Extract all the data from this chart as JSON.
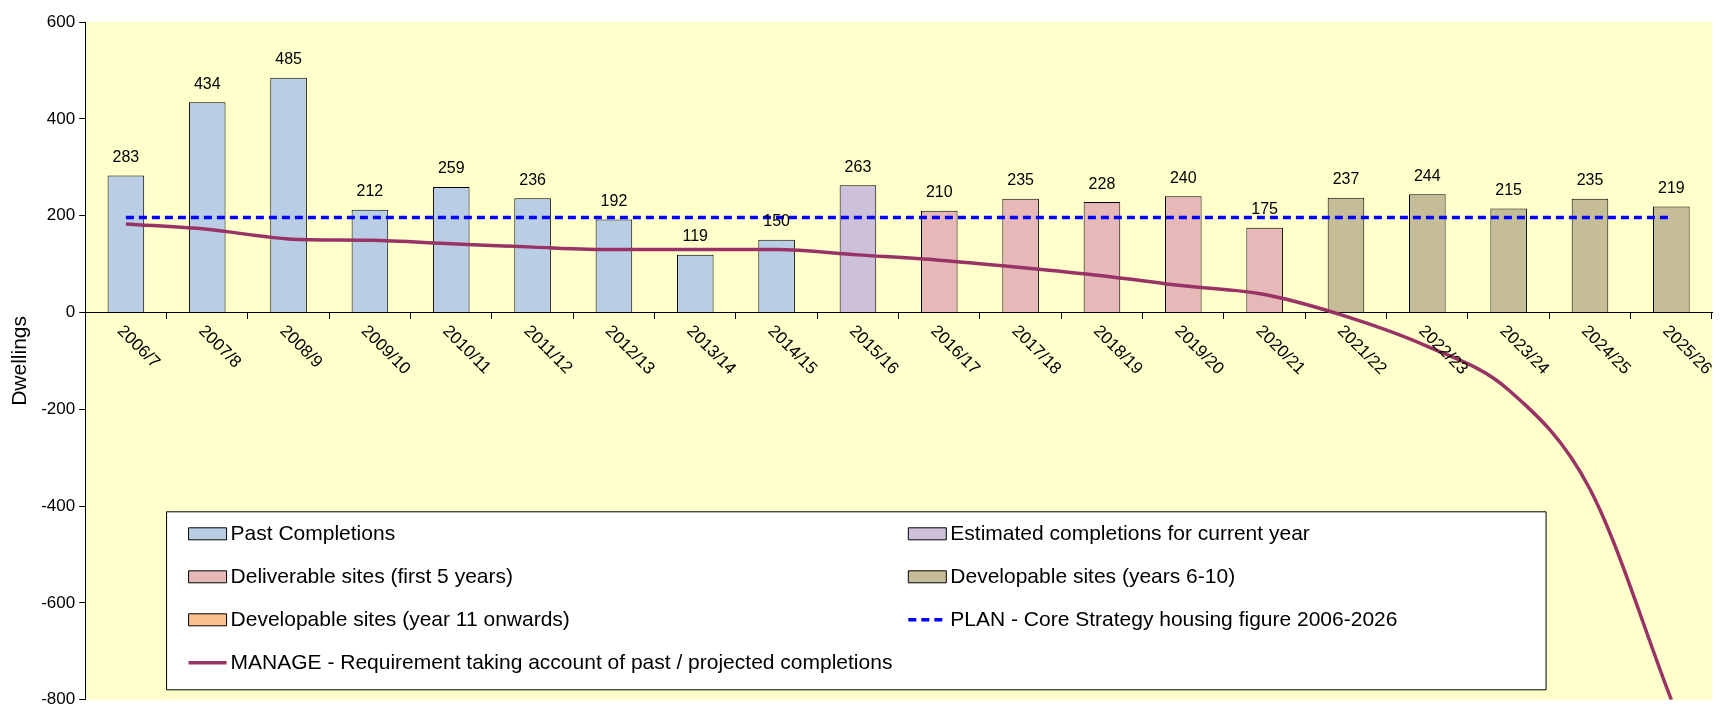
{
  "chart_data": {
    "type": "bar",
    "stacked": true,
    "ylabel": "Dwellings",
    "categories": [
      "2006/7",
      "2007/8",
      "2008/9",
      "2009/10",
      "2010/11",
      "2011/12",
      "2012/13",
      "2013/14",
      "2014/15",
      "2015/16",
      "2016/17",
      "2017/18",
      "2018/19",
      "2019/20",
      "2020/21",
      "2021/22",
      "2022/23",
      "2023/24",
      "2024/25",
      "2025/26"
    ],
    "series": [
      {
        "name": "Past Completions",
        "color": "#b9cde5",
        "values": [
          283,
          434,
          485,
          212,
          259,
          236,
          192,
          119,
          150,
          null,
          null,
          null,
          null,
          null,
          null,
          null,
          null,
          null,
          null,
          null
        ],
        "value_labels": [
          "283",
          "434",
          "485",
          "212",
          "259",
          "236",
          "192",
          "119",
          "150",
          null,
          null,
          null,
          null,
          null,
          null,
          null,
          null,
          null,
          null,
          null
        ]
      },
      {
        "name": "Estimated completions for current year",
        "color": "#ccc0da",
        "values": [
          null,
          null,
          null,
          null,
          null,
          null,
          null,
          null,
          null,
          263,
          null,
          null,
          null,
          null,
          null,
          null,
          null,
          null,
          null,
          null
        ],
        "value_labels": [
          null,
          null,
          null,
          null,
          null,
          null,
          null,
          null,
          null,
          "263",
          null,
          null,
          null,
          null,
          null,
          null,
          null,
          null,
          null,
          null
        ]
      },
      {
        "name": "Deliverable sites (first 5 years)",
        "color": "#e6b9b8",
        "values": [
          null,
          null,
          null,
          null,
          null,
          null,
          null,
          null,
          null,
          null,
          210,
          235,
          228,
          240,
          175,
          null,
          null,
          null,
          null,
          null
        ],
        "value_labels": [
          null,
          null,
          null,
          null,
          null,
          null,
          null,
          null,
          null,
          null,
          "210",
          "235",
          "228",
          "240",
          "175",
          null,
          null,
          null,
          null,
          null
        ]
      },
      {
        "name": "Developable sites (years 6-10)",
        "color": "#c4bd97",
        "values": [
          null,
          null,
          null,
          null,
          null,
          null,
          null,
          null,
          null,
          null,
          null,
          null,
          null,
          null,
          null,
          237,
          244,
          215,
          235,
          219
        ],
        "value_labels": [
          null,
          null,
          null,
          null,
          null,
          null,
          null,
          null,
          null,
          null,
          null,
          null,
          null,
          null,
          null,
          "237",
          "244",
          "215",
          "235",
          "219"
        ]
      },
      {
        "name": "Developable sites (year 11 onwards)",
        "color": "#fac090",
        "values": [
          null,
          null,
          null,
          null,
          null,
          null,
          null,
          null,
          null,
          null,
          null,
          null,
          null,
          null,
          null,
          null,
          null,
          null,
          null,
          null
        ]
      },
      {
        "name": "PLAN - Core Strategy housing figure 2006-2026",
        "type": "line",
        "line_style": "dashed",
        "color": "#0000ff",
        "values": [
          196,
          196,
          196,
          196,
          196,
          196,
          196,
          196,
          196,
          196,
          196,
          196,
          196,
          196,
          196,
          196,
          196,
          196,
          196,
          196
        ]
      },
      {
        "name": "MANAGE - Requirement taking account of past / projected completions",
        "type": "line",
        "line_style": "solid",
        "color": "#993366",
        "values": [
          183,
          172,
          152,
          149,
          142,
          135,
          130,
          130,
          130,
          119,
          108,
          93,
          76,
          55,
          37,
          -8,
          -70,
          -160,
          -365,
          -800
        ]
      }
    ],
    "ylim": [
      -800,
      600
    ],
    "yticks": [
      -800,
      -600,
      -400,
      -200,
      0,
      200,
      400,
      600
    ],
    "legend": "bottom",
    "grid": false,
    "marker": "none"
  }
}
